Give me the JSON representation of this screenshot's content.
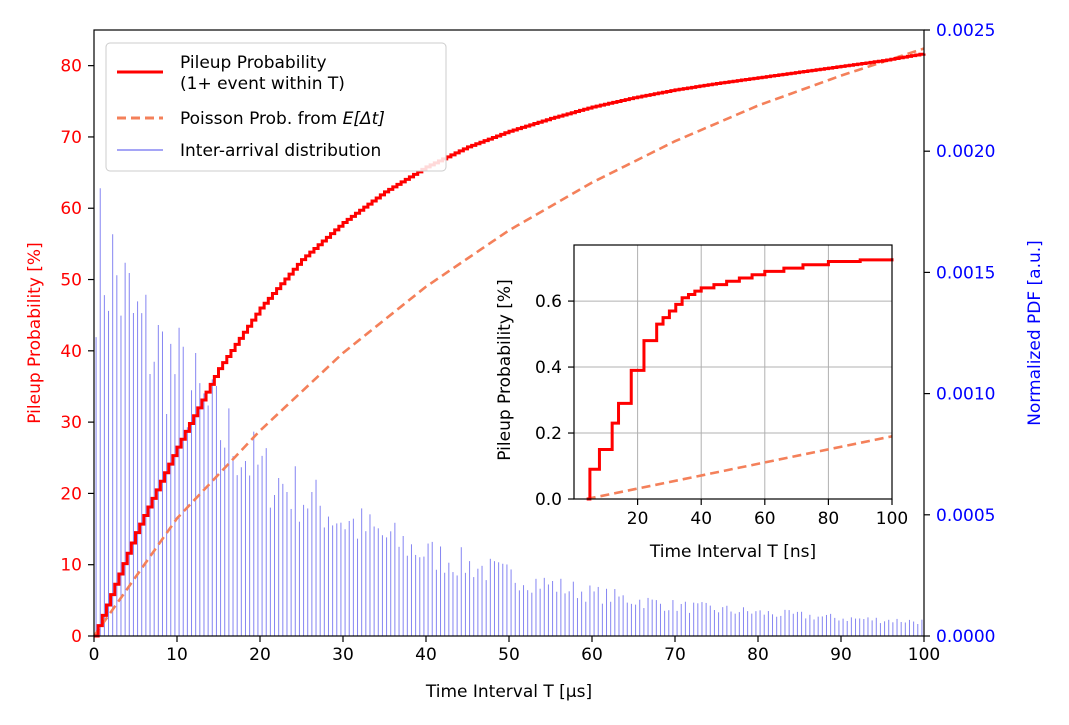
{
  "colors": {
    "pileup": "#ff0000",
    "poisson": "#f4805a",
    "hist": "#6f6ff0",
    "right_axis": "#0000ff",
    "left_axis": "#ff0000",
    "grid": "#b0b0b0",
    "axis": "#000000"
  },
  "chart_data": [
    {
      "id": "main",
      "type": "line",
      "xlabel": "Time Interval T [µs]",
      "ylabel": "Pileup Probability [%]",
      "ylabel_right": "Normalized PDF [a.u.]",
      "xlim": [
        0,
        100
      ],
      "ylim": [
        0,
        85
      ],
      "ylim_right": [
        0,
        0.0025
      ],
      "x_ticks": [
        0,
        10,
        20,
        30,
        40,
        50,
        60,
        70,
        80,
        90,
        100
      ],
      "y_ticks": [
        0,
        10,
        20,
        30,
        40,
        50,
        60,
        70,
        80
      ],
      "y_ticks_right": [
        "0.0000",
        "0.0005",
        "0.0010",
        "0.0015",
        "0.0020",
        "0.0025"
      ],
      "grid": false,
      "legend_position": "top-left",
      "legend": [
        {
          "label": "Pileup Probability",
          "label2": "(1+ event within T)",
          "style": "solid"
        },
        {
          "label": "Poisson Prob. from ",
          "label_math": "E[Δt]",
          "style": "dashed"
        },
        {
          "label": "Inter-arrival distribution",
          "style": "hist"
        }
      ],
      "series": [
        {
          "name": "Pileup Probability (1+ event within T)",
          "style": "solid",
          "x": [
            0,
            5,
            10,
            15,
            20,
            25,
            30,
            35,
            40,
            45,
            50,
            55,
            60,
            65,
            70,
            75,
            80,
            85,
            90,
            95,
            100
          ],
          "y": [
            0,
            14.5,
            26.5,
            37.5,
            46.0,
            52.8,
            58.0,
            62.3,
            65.8,
            68.6,
            70.8,
            72.6,
            74.2,
            75.5,
            76.6,
            77.5,
            78.3,
            79.1,
            79.9,
            80.7,
            81.7
          ]
        },
        {
          "name": "Poisson Prob. from E[Δt]",
          "style": "dashed",
          "x": [
            0,
            10,
            20,
            30,
            40,
            50,
            60,
            70,
            80,
            90,
            100
          ],
          "y": [
            0,
            16.5,
            28.8,
            39.7,
            49.0,
            56.9,
            63.6,
            69.4,
            74.4,
            78.6,
            82.4
          ]
        },
        {
          "name": "Inter-arrival distribution",
          "style": "hist",
          "axis": "right",
          "bin_width": 0.5,
          "envelope_x": [
            0,
            2,
            5,
            10,
            15,
            20,
            30,
            40,
            50,
            60,
            70,
            80,
            90,
            100
          ],
          "envelope_y": [
            0.00172,
            0.00166,
            0.0014,
            0.00118,
            0.00094,
            0.00074,
            0.00052,
            0.00037,
            0.00027,
            0.00019,
            0.000135,
            0.000105,
            8e-05,
            6.5e-05
          ]
        }
      ]
    },
    {
      "id": "inset",
      "type": "line",
      "xlabel": "Time Interval T [ns]",
      "ylabel": "Pileup Probability [%]",
      "xlim": [
        0,
        100
      ],
      "ylim": [
        0,
        0.77
      ],
      "x_ticks": [
        20,
        40,
        60,
        80,
        100
      ],
      "y_ticks": [
        "0.0",
        "0.2",
        "0.4",
        "0.6"
      ],
      "grid": true,
      "series": [
        {
          "name": "Pileup Probability",
          "style": "step",
          "x": [
            4,
            5,
            6,
            8,
            10,
            12,
            14,
            16,
            18,
            20,
            22,
            24,
            26,
            28,
            30,
            32,
            34,
            36,
            38,
            40,
            44,
            48,
            52,
            56,
            60,
            66,
            72,
            80,
            90,
            100
          ],
          "y": [
            0.0,
            0.09,
            0.09,
            0.15,
            0.15,
            0.23,
            0.29,
            0.29,
            0.39,
            0.39,
            0.48,
            0.48,
            0.53,
            0.55,
            0.57,
            0.59,
            0.61,
            0.62,
            0.63,
            0.64,
            0.65,
            0.66,
            0.67,
            0.68,
            0.69,
            0.7,
            0.71,
            0.72,
            0.725,
            0.73
          ]
        },
        {
          "name": "Poisson Prob.",
          "style": "dashed",
          "x": [
            4,
            100
          ],
          "y": [
            0.0,
            0.19
          ]
        }
      ]
    }
  ]
}
